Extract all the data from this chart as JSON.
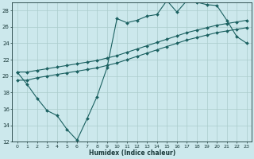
{
  "xlabel": "Humidex (Indice chaleur)",
  "xlim": [
    -0.5,
    23.5
  ],
  "ylim": [
    12,
    29
  ],
  "xticks": [
    0,
    1,
    2,
    3,
    4,
    5,
    6,
    7,
    8,
    9,
    10,
    11,
    12,
    13,
    14,
    15,
    16,
    17,
    18,
    19,
    20,
    21,
    22,
    23
  ],
  "yticks": [
    12,
    14,
    16,
    18,
    20,
    22,
    24,
    26,
    28
  ],
  "bg_color": "#cce8ec",
  "line_color": "#1a6060",
  "grid_color": "#aacccc",
  "line1_x": [
    0,
    1,
    2,
    3,
    4,
    5,
    6,
    7,
    8,
    9,
    10,
    11,
    12,
    13,
    14,
    15,
    16,
    17,
    18,
    19,
    20,
    21,
    22,
    23
  ],
  "line1_y": [
    20.5,
    19.0,
    17.3,
    15.8,
    15.2,
    13.5,
    12.2,
    14.8,
    17.5,
    21.0,
    27.0,
    26.5,
    26.8,
    27.3,
    27.5,
    29.2,
    27.8,
    29.2,
    29.0,
    28.7,
    28.6,
    26.8,
    24.8,
    24.0
  ],
  "line2_x": [
    0,
    1,
    2,
    3,
    4,
    5,
    6,
    7,
    8,
    9,
    10,
    11,
    12,
    13,
    14,
    15,
    16,
    17,
    18,
    19,
    20,
    21,
    22,
    23
  ],
  "line2_y": [
    19.5,
    19.5,
    19.8,
    20.0,
    20.2,
    20.4,
    20.6,
    20.8,
    21.0,
    21.3,
    21.6,
    22.0,
    22.4,
    22.8,
    23.2,
    23.6,
    24.0,
    24.4,
    24.7,
    25.0,
    25.3,
    25.5,
    25.7,
    25.9
  ],
  "line3_x": [
    0,
    1,
    2,
    3,
    4,
    5,
    6,
    7,
    8,
    9,
    10,
    11,
    12,
    13,
    14,
    15,
    16,
    17,
    18,
    19,
    20,
    21,
    22,
    23
  ],
  "line3_y": [
    20.5,
    20.5,
    20.7,
    20.9,
    21.1,
    21.3,
    21.5,
    21.7,
    21.9,
    22.2,
    22.5,
    22.9,
    23.3,
    23.7,
    24.1,
    24.5,
    24.9,
    25.3,
    25.6,
    25.9,
    26.2,
    26.4,
    26.6,
    26.8
  ]
}
